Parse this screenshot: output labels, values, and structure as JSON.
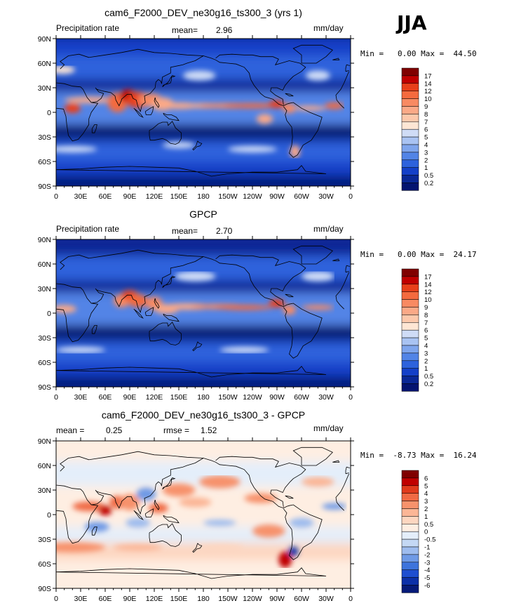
{
  "season": "JJA",
  "chart_data": [
    {
      "type": "heatmap",
      "title": "cam6_F2000_DEV_ne30g16_ts300_3 (yrs 1)",
      "left_label": "Precipitation rate",
      "stat_label": "mean=",
      "stat_value": "2.96",
      "units": "mm/day",
      "minmax": "Min =   0.00 Max =  44.50",
      "colorbar": {
        "levels": [
          "17",
          "14",
          "12",
          "10",
          "9",
          "8",
          "7",
          "6",
          "5",
          "4",
          "3",
          "2",
          "1",
          "0.5",
          "0.2"
        ],
        "colors": [
          "#800000",
          "#c00000",
          "#e8401a",
          "#f46a3e",
          "#f88a62",
          "#fba987",
          "#fdc8ab",
          "#fee6d4",
          "#cfdcf6",
          "#a9c3f2",
          "#7fa5ec",
          "#5284e6",
          "#2d62dc",
          "#1440c8",
          "#0a2896",
          "#041470"
        ]
      },
      "x_ticks": [
        "0",
        "30E",
        "60E",
        "90E",
        "120E",
        "150E",
        "180",
        "150W",
        "120W",
        "90W",
        "60W",
        "30W",
        "0"
      ],
      "y_ticks": [
        "90N",
        "60N",
        "30N",
        "0",
        "30S",
        "60S",
        "90S"
      ],
      "xlim": [
        0,
        360
      ],
      "ylim": [
        -90,
        90
      ]
    },
    {
      "type": "heatmap",
      "title": "GPCP",
      "left_label": "Precipitation rate",
      "stat_label": "mean=",
      "stat_value": "2.70",
      "units": "mm/day",
      "minmax": "Min =   0.00 Max =  24.17",
      "colorbar": {
        "levels": [
          "17",
          "14",
          "12",
          "10",
          "9",
          "8",
          "7",
          "6",
          "5",
          "4",
          "3",
          "2",
          "1",
          "0.5",
          "0.2"
        ],
        "colors": [
          "#800000",
          "#c00000",
          "#e8401a",
          "#f46a3e",
          "#f88a62",
          "#fba987",
          "#fdc8ab",
          "#fee6d4",
          "#cfdcf6",
          "#a9c3f2",
          "#7fa5ec",
          "#5284e6",
          "#2d62dc",
          "#1440c8",
          "#0a2896",
          "#041470"
        ]
      },
      "x_ticks": [
        "0",
        "30E",
        "60E",
        "90E",
        "120E",
        "150E",
        "180",
        "150W",
        "120W",
        "90W",
        "60W",
        "30W",
        "0"
      ],
      "y_ticks": [
        "90N",
        "60N",
        "30N",
        "0",
        "30S",
        "60S",
        "90S"
      ],
      "xlim": [
        0,
        360
      ],
      "ylim": [
        -90,
        90
      ]
    },
    {
      "type": "heatmap",
      "title": "cam6_F2000_DEV_ne30g16_ts300_3 - GPCP",
      "left_label": "mean =",
      "left_value": "0.25",
      "stat_label": "rmse =",
      "stat_value": "1.52",
      "units": "mm/day",
      "minmax": "Min =  -8.73 Max =  16.24",
      "colorbar": {
        "levels": [
          "6",
          "5",
          "4",
          "3",
          "2",
          "1",
          "0.5",
          "0",
          "-0.5",
          "-1",
          "-2",
          "-3",
          "-4",
          "-5",
          "-6"
        ],
        "colors": [
          "#800000",
          "#c00000",
          "#e03a1c",
          "#f06a44",
          "#f7926c",
          "#fbb696",
          "#fdd6c0",
          "#feeee2",
          "#e4eefa",
          "#c4d8f4",
          "#9ebcee",
          "#6f9ae6",
          "#3e74dc",
          "#1e4ed0",
          "#0c30a8",
          "#061a78"
        ]
      },
      "x_ticks": [
        "0",
        "30E",
        "60E",
        "90E",
        "120E",
        "150E",
        "180",
        "150W",
        "120W",
        "90W",
        "60W",
        "30W",
        "0"
      ],
      "y_ticks": [
        "90N",
        "60N",
        "30N",
        "0",
        "30S",
        "60S",
        "90S"
      ],
      "xlim": [
        0,
        360
      ],
      "ylim": [
        -90,
        90
      ]
    }
  ]
}
